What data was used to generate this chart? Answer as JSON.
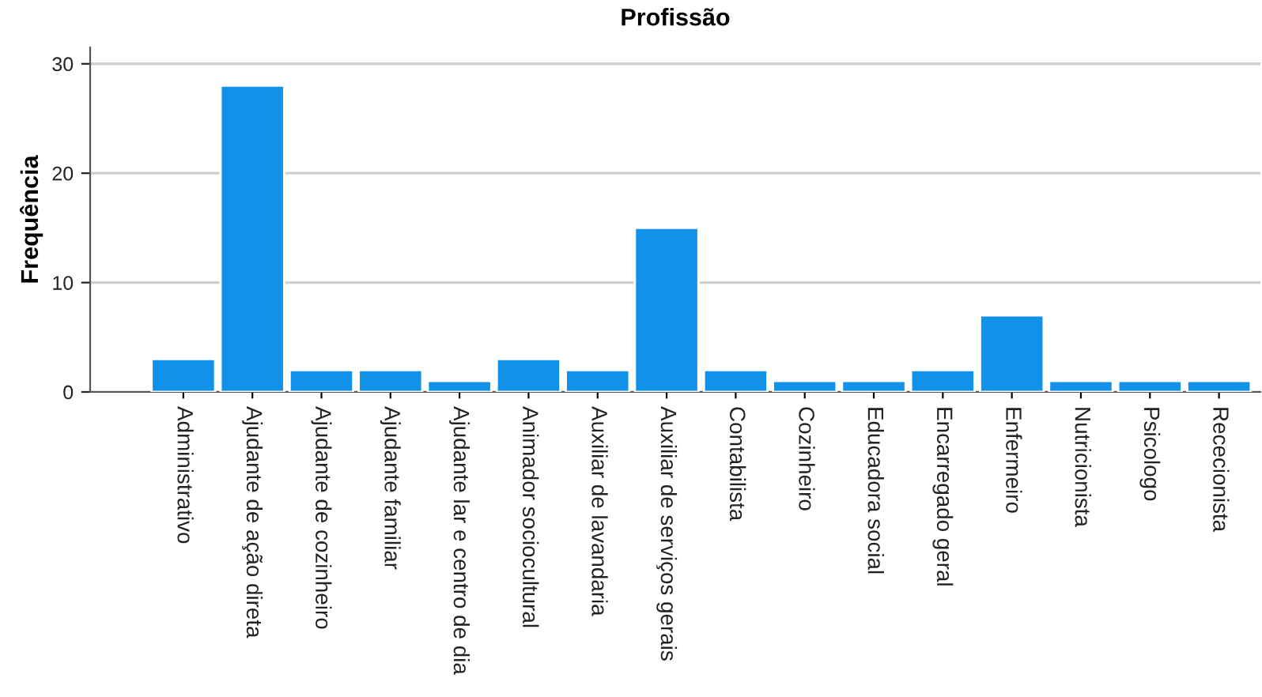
{
  "chart_data": {
    "type": "bar",
    "title": "Profissão",
    "ylabel": "Frequência",
    "categories": [
      "Administrativo",
      "Ajudante de ação direta",
      "Ajudante de cozinheiro",
      "Ajudante familiar",
      "Ajudante lar e centro de dia",
      "Animador sociocultural",
      "Auxiliar de lavandaria",
      "Auxiliar de serviços gerais",
      "Contabilista",
      "Cozinheiro",
      "Educadora social",
      "Encarregado geral",
      "Enfermeiro",
      "Nutricionista",
      "Psicologo",
      "Rececionista"
    ],
    "values": [
      3,
      28,
      2,
      2,
      1,
      3,
      2,
      15,
      2,
      1,
      1,
      2,
      7,
      1,
      1,
      1
    ],
    "color": "#1192e8",
    "ylim": [
      0,
      31.5
    ],
    "yticks": [
      0,
      10,
      20,
      30
    ],
    "grid": "y"
  }
}
